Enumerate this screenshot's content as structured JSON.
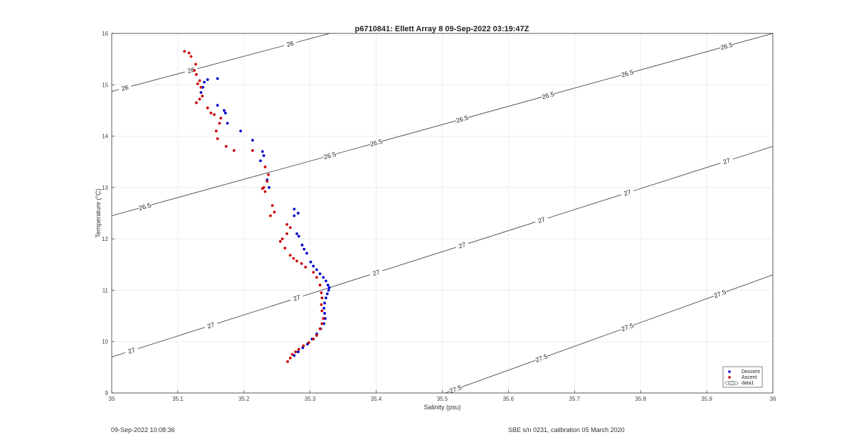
{
  "chart_data": {
    "type": "scatter",
    "title": "p6710841: Ellett Array 8 09-Sep-2022 03:19:47Z",
    "xlabel": "Salinity (psu)",
    "ylabel": "Temperature (°C)",
    "xlim": [
      35,
      36
    ],
    "ylim": [
      9,
      16
    ],
    "xticks": [
      "35",
      "35.1",
      "35.2",
      "35.3",
      "35.4",
      "35.5",
      "35.6",
      "35.7",
      "35.8",
      "35.9",
      "36"
    ],
    "yticks": [
      "9",
      "10",
      "11",
      "12",
      "13",
      "14",
      "15",
      "16"
    ],
    "grid": true,
    "legend_position": "bottom-right",
    "legend": [
      "Descent",
      "Ascent",
      "data1"
    ],
    "series": [
      {
        "name": "Descent",
        "color": "#0000cc",
        "points": [
          [
            35.145,
            15.1
          ],
          [
            35.16,
            15.12
          ],
          [
            35.14,
            15.05
          ],
          [
            35.138,
            14.95
          ],
          [
            35.135,
            14.85
          ],
          [
            35.16,
            14.6
          ],
          [
            35.17,
            14.5
          ],
          [
            35.172,
            14.45
          ],
          [
            35.175,
            14.25
          ],
          [
            35.195,
            14.1
          ],
          [
            35.213,
            13.92
          ],
          [
            35.228,
            13.7
          ],
          [
            35.23,
            13.62
          ],
          [
            35.225,
            13.52
          ],
          [
            35.235,
            13.15
          ],
          [
            35.238,
            13.0
          ],
          [
            35.276,
            12.58
          ],
          [
            35.282,
            12.5
          ],
          [
            35.276,
            12.45
          ],
          [
            35.28,
            12.1
          ],
          [
            35.283,
            12.05
          ],
          [
            35.288,
            11.88
          ],
          [
            35.291,
            11.8
          ],
          [
            35.295,
            11.72
          ],
          [
            35.301,
            11.55
          ],
          [
            35.305,
            11.47
          ],
          [
            35.31,
            11.4
          ],
          [
            35.315,
            11.32
          ],
          [
            35.32,
            11.25
          ],
          [
            35.324,
            11.18
          ],
          [
            35.327,
            11.1
          ],
          [
            35.329,
            11.05
          ],
          [
            35.328,
            11.0
          ],
          [
            35.326,
            10.93
          ],
          [
            35.324,
            10.85
          ],
          [
            35.322,
            10.75
          ],
          [
            35.321,
            10.65
          ],
          [
            35.322,
            10.55
          ],
          [
            35.323,
            10.45
          ],
          [
            35.321,
            10.35
          ],
          [
            35.316,
            10.25
          ],
          [
            35.31,
            10.15
          ],
          [
            35.303,
            10.05
          ],
          [
            35.296,
            9.95
          ],
          [
            35.289,
            9.88
          ],
          [
            35.282,
            9.8
          ],
          [
            35.276,
            9.73
          ]
        ]
      },
      {
        "name": "Ascent",
        "color": "#cc0000",
        "points": [
          [
            35.11,
            15.65
          ],
          [
            35.117,
            15.62
          ],
          [
            35.12,
            15.55
          ],
          [
            35.127,
            15.4
          ],
          [
            35.125,
            15.28
          ],
          [
            35.128,
            15.2
          ],
          [
            35.133,
            15.08
          ],
          [
            35.13,
            15.02
          ],
          [
            35.135,
            14.95
          ],
          [
            35.137,
            14.78
          ],
          [
            35.133,
            14.72
          ],
          [
            35.128,
            14.65
          ],
          [
            35.145,
            14.55
          ],
          [
            35.15,
            14.45
          ],
          [
            35.155,
            14.42
          ],
          [
            35.165,
            14.35
          ],
          [
            35.163,
            14.25
          ],
          [
            35.158,
            14.1
          ],
          [
            35.16,
            13.95
          ],
          [
            35.173,
            13.8
          ],
          [
            35.185,
            13.72
          ],
          [
            35.213,
            13.72
          ],
          [
            35.232,
            13.4
          ],
          [
            35.237,
            13.25
          ],
          [
            35.235,
            13.12
          ],
          [
            35.23,
            13.0
          ],
          [
            35.228,
            12.98
          ],
          [
            35.232,
            12.92
          ],
          [
            35.243,
            12.65
          ],
          [
            35.246,
            12.52
          ],
          [
            35.24,
            12.45
          ],
          [
            35.265,
            12.28
          ],
          [
            35.27,
            12.22
          ],
          [
            35.265,
            12.1
          ],
          [
            35.258,
            12.0
          ],
          [
            35.255,
            11.95
          ],
          [
            35.262,
            11.82
          ],
          [
            35.27,
            11.68
          ],
          [
            35.275,
            11.62
          ],
          [
            35.28,
            11.57
          ],
          [
            35.287,
            11.52
          ],
          [
            35.293,
            11.45
          ],
          [
            35.305,
            11.35
          ],
          [
            35.31,
            11.25
          ],
          [
            35.315,
            11.1
          ],
          [
            35.317,
            10.95
          ],
          [
            35.318,
            10.85
          ],
          [
            35.317,
            10.72
          ],
          [
            35.318,
            10.6
          ],
          [
            35.32,
            10.45
          ],
          [
            35.318,
            10.35
          ],
          [
            35.315,
            10.25
          ],
          [
            35.31,
            10.12
          ],
          [
            35.305,
            10.05
          ],
          [
            35.298,
            9.98
          ],
          [
            35.29,
            9.92
          ],
          [
            35.283,
            9.85
          ],
          [
            35.278,
            9.8
          ],
          [
            35.273,
            9.75
          ],
          [
            35.27,
            9.68
          ],
          [
            35.266,
            9.61
          ]
        ]
      }
    ],
    "contours": [
      {
        "label": "26",
        "points": [
          [
            35.0,
            14.87
          ],
          [
            35.33,
            16.0
          ]
        ],
        "label_at": [
          35.02,
          26.25
        ]
      },
      {
        "label": "26.5",
        "points": [
          [
            35.0,
            12.45
          ],
          [
            36.0,
            16.0
          ]
        ],
        "label_at": [
          35.05,
          35.33,
          35.4,
          35.53,
          35.66,
          35.78,
          35.93
        ]
      },
      {
        "label": "27",
        "points": [
          [
            35.0,
            9.7
          ],
          [
            36.0,
            13.8
          ]
        ],
        "label_at": [
          35.03,
          35.15,
          35.28,
          35.4,
          35.53,
          35.65,
          35.78,
          35.93
        ]
      },
      {
        "label": "27.5",
        "points": [
          [
            35.5,
            8.98
          ],
          [
            36.0,
            11.3
          ]
        ],
        "label_at": [
          35.52,
          35.65,
          35.78,
          35.92
        ]
      }
    ],
    "footer_left": "09-Sep-2022 10:08:36",
    "footer_right": "SBE s/n 0231, calibration 05 March 2020"
  }
}
